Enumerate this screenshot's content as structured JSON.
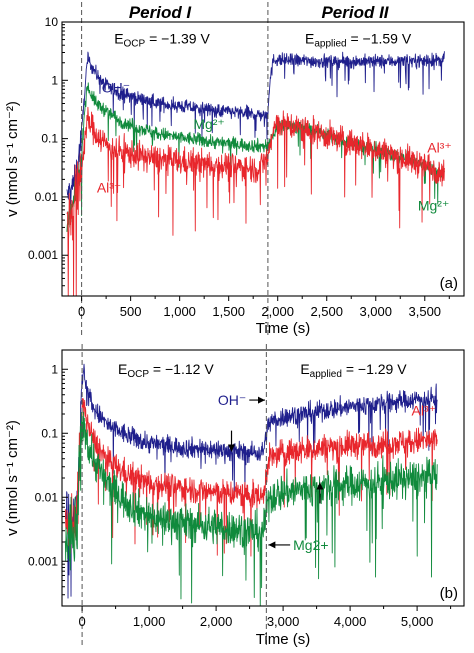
{
  "periods": [
    "Period I",
    "Period II"
  ],
  "colors": {
    "oh": "#1f1f8c",
    "mg": "#108a3c",
    "al": "#e8262c",
    "axis": "#000000",
    "divider": "#555555"
  },
  "chart_data": [
    {
      "type": "line",
      "panel_label": "(a)",
      "xlabel": "Time (s)",
      "ylabel": "v (nmol s⁻¹ cm⁻²)",
      "xlim": [
        -200,
        3900
      ],
      "ylim": [
        0.0002,
        10
      ],
      "yscale": "log",
      "xticks": [
        0,
        500,
        1000,
        1500,
        2000,
        2500,
        3000,
        3500
      ],
      "xtick_labels": [
        "0",
        "500",
        "1,000",
        "1,500",
        "2,000",
        "2,500",
        "3,000",
        "3,500"
      ],
      "yticks": [
        0.001,
        0.01,
        0.1,
        1,
        10
      ],
      "ytick_labels": [
        "0.001",
        "0.01",
        "0.1",
        "1",
        "10"
      ],
      "dividers": [
        0,
        1900
      ],
      "annotations": [
        {
          "base": "E",
          "sub": "OCP",
          "text": " = −1.39 V",
          "x": 820,
          "y": 4.3
        },
        {
          "base": "E",
          "sub": "applied",
          "text": " = −1.59 V",
          "x": 2820,
          "y": 4.3
        }
      ],
      "series": [
        {
          "label": "OH⁻",
          "color": "#1f1f8c",
          "x": [
            -150,
            -60,
            0,
            30,
            60,
            90,
            120,
            160,
            220,
            300,
            400,
            600,
            800,
            1000,
            1200,
            1400,
            1600,
            1800,
            1880,
            1900,
            1920,
            1960,
            2000,
            2100,
            2300,
            2600,
            3000,
            3300,
            3500,
            3700
          ],
          "y": [
            0.01,
            0.02,
            0.12,
            0.6,
            2.3,
            1.9,
            1.6,
            1.2,
            0.9,
            0.72,
            0.6,
            0.48,
            0.4,
            0.36,
            0.33,
            0.3,
            0.28,
            0.26,
            0.25,
            0.3,
            1.0,
            2.3,
            2.25,
            2.2,
            2.15,
            2.1,
            2.1,
            2.15,
            2.2,
            2.2
          ],
          "noise": 0.22,
          "label_at": {
            "x": 350,
            "y": 0.62
          },
          "label_align": "middle"
        },
        {
          "label": "Mg²⁺",
          "color": "#108a3c",
          "x": [
            -150,
            -60,
            0,
            30,
            60,
            90,
            150,
            250,
            400,
            600,
            800,
            1000,
            1200,
            1400,
            1600,
            1800,
            1900,
            1960,
            2000,
            2100,
            2300,
            2600,
            3000,
            3300,
            3500,
            3700
          ],
          "y": [
            0.003,
            0.01,
            0.05,
            0.3,
            0.85,
            0.6,
            0.4,
            0.3,
            0.2,
            0.15,
            0.12,
            0.105,
            0.095,
            0.085,
            0.08,
            0.075,
            0.075,
            0.12,
            0.17,
            0.17,
            0.15,
            0.1,
            0.065,
            0.045,
            0.035,
            0.025
          ],
          "noise": 0.22,
          "label_at": {
            "x": 1300,
            "y": 0.145
          },
          "label_align": "middle"
        },
        {
          "label": "Al³⁺",
          "color": "#e8262c",
          "x": [
            -150,
            -60,
            0,
            30,
            60,
            90,
            150,
            250,
            400,
            600,
            800,
            1000,
            1200,
            1400,
            1600,
            1800,
            1900,
            1960,
            2000,
            2100,
            2300,
            2600,
            3000,
            3300,
            3500,
            3700
          ],
          "y": [
            0.003,
            0.01,
            0.03,
            0.1,
            0.2,
            0.18,
            0.12,
            0.08,
            0.06,
            0.05,
            0.045,
            0.04,
            0.038,
            0.035,
            0.033,
            0.03,
            0.05,
            0.15,
            0.18,
            0.17,
            0.14,
            0.1,
            0.065,
            0.045,
            0.035,
            0.027
          ],
          "noise": 0.45,
          "label_at": {
            "x": 280,
            "y": 0.012
          },
          "label_align": "middle"
        }
      ],
      "end_labels": [
        {
          "series": 2,
          "x": 3650,
          "y": 0.058
        },
        {
          "series": 1,
          "x": 3590,
          "y": 0.0058
        }
      ]
    },
    {
      "type": "line",
      "panel_label": "(b)",
      "xlabel": "Time (s)",
      "ylabel": "v (nmol s⁻¹ cm⁻²)",
      "xlim": [
        -300,
        5700
      ],
      "ylim": [
        0.0002,
        2
      ],
      "yscale": "log",
      "xticks": [
        0,
        1000,
        2000,
        3000,
        4000,
        5000
      ],
      "xtick_labels": [
        "0",
        "1,000",
        "2,000",
        "3,000",
        "4,000",
        "5,000"
      ],
      "yticks": [
        0.001,
        0.01,
        0.1,
        1
      ],
      "ytick_labels": [
        "0.001",
        "0.01",
        "0.1",
        "1"
      ],
      "dividers": [
        0,
        2750
      ],
      "annotations": [
        {
          "base": "E",
          "sub": "OCP",
          "text": " = −1.12 V",
          "x": 1250,
          "y": 0.85
        },
        {
          "base": "E",
          "sub": "applied",
          "text": " = −1.29 V",
          "x": 4050,
          "y": 0.85
        }
      ],
      "series": [
        {
          "label": "OH⁻",
          "color": "#1f1f8c",
          "x": [
            -250,
            -80,
            0,
            20,
            50,
            100,
            200,
            400,
            700,
            1000,
            1500,
            2000,
            2500,
            2700,
            2750,
            2800,
            3000,
            3500,
            4000,
            4500,
            5000,
            5300
          ],
          "y": [
            0.005,
            0.008,
            0.5,
            1.0,
            0.7,
            0.4,
            0.22,
            0.13,
            0.09,
            0.07,
            0.06,
            0.055,
            0.05,
            0.05,
            0.1,
            0.15,
            0.18,
            0.22,
            0.26,
            0.3,
            0.34,
            0.36
          ],
          "noise": 0.3,
          "label_at": null,
          "label_align": "middle"
        },
        {
          "label": "Al³⁺",
          "color": "#e8262c",
          "x": [
            -250,
            -80,
            0,
            20,
            50,
            100,
            200,
            400,
            700,
            1000,
            1500,
            2000,
            2500,
            2700,
            2750,
            2800,
            3000,
            3500,
            4000,
            4500,
            5000,
            5300
          ],
          "y": [
            0.003,
            0.005,
            0.2,
            0.35,
            0.2,
            0.12,
            0.07,
            0.035,
            0.022,
            0.017,
            0.014,
            0.012,
            0.011,
            0.01,
            0.025,
            0.04,
            0.05,
            0.058,
            0.065,
            0.07,
            0.075,
            0.078
          ],
          "noise": 0.4,
          "label_at": null,
          "label_align": "middle"
        },
        {
          "label": "Mg2+",
          "color": "#108a3c",
          "x": [
            -250,
            -80,
            0,
            20,
            50,
            100,
            200,
            400,
            700,
            1000,
            1500,
            2000,
            2500,
            2700,
            2750,
            2800,
            3000,
            3500,
            4000,
            4500,
            5000,
            5300
          ],
          "y": [
            0.002,
            0.003,
            0.1,
            0.15,
            0.1,
            0.06,
            0.035,
            0.015,
            0.008,
            0.005,
            0.004,
            0.0035,
            0.003,
            0.003,
            0.006,
            0.01,
            0.012,
            0.014,
            0.016,
            0.018,
            0.02,
            0.021
          ],
          "noise": 0.55,
          "label_at": null,
          "label_align": "middle"
        }
      ],
      "end_labels": [
        {
          "series": 1,
          "x": 5100,
          "y": 0.19
        }
      ],
      "callouts": [
        {
          "series": 0,
          "text": "OH⁻",
          "x": 2450,
          "y": 0.33,
          "ax": 2730,
          "ay": 0.33,
          "align": "end"
        },
        {
          "series": 2,
          "text": "Mg2+",
          "x": 3150,
          "y": 0.0018,
          "ax": 2780,
          "ay": 0.0018,
          "align": "start"
        }
      ],
      "arrows": [
        {
          "x": 2230,
          "y": 0.11,
          "ax": 2230,
          "ay": 0.052
        },
        {
          "x": 3550,
          "y": 0.008,
          "ax": 3550,
          "ay": 0.017
        }
      ]
    }
  ]
}
